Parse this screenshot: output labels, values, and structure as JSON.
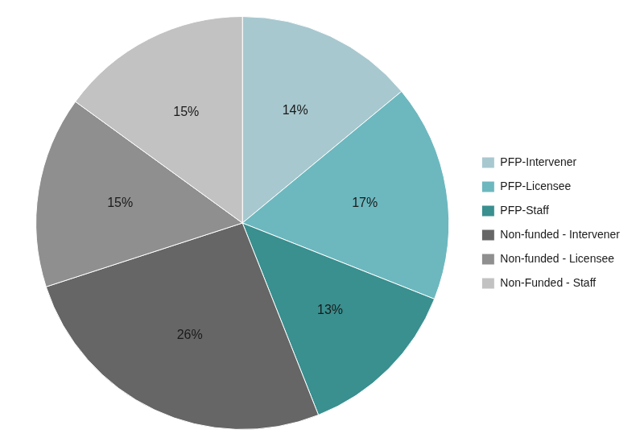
{
  "chart_data": {
    "type": "pie",
    "categories": [
      "PFP-Intervener",
      "PFP-Licensee",
      "PFP-Staff",
      "Non-funded - Intervener",
      "Non-funded - Licensee",
      "Non-Funded - Staff"
    ],
    "values": [
      14,
      17,
      13,
      26,
      15,
      15
    ],
    "value_labels": [
      "14%",
      "17%",
      "13%",
      "26%",
      "15%",
      "15%"
    ],
    "colors": [
      "#a8c8cf",
      "#6db8bf",
      "#3a8f8f",
      "#666666",
      "#8f8f8f",
      "#c2c2c2"
    ],
    "data_labels": true,
    "legend": "right"
  }
}
